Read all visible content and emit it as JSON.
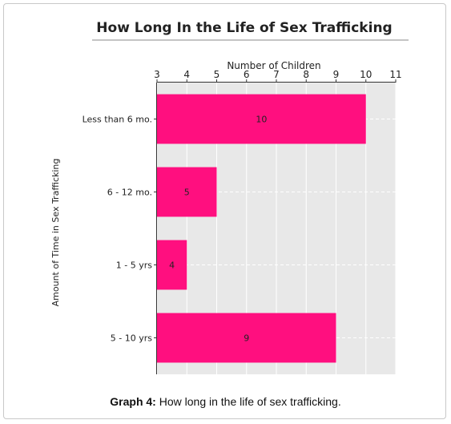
{
  "chart_data": {
    "type": "bar",
    "orientation": "horizontal",
    "title": "How Long In the Life of Sex Trafficking",
    "xlabel": "Number of Children",
    "ylabel": "Amount of Time in Sex Trafficking",
    "categories": [
      "Less than 6 mo.",
      "6 - 12 mo.",
      "1 - 5 yrs",
      "5 - 10 yrs"
    ],
    "values": [
      10,
      5,
      4,
      9
    ],
    "data_labels": [
      "10",
      "5",
      "4",
      "9"
    ],
    "xlim": [
      3,
      11
    ],
    "x_ticks": [
      "3",
      "4",
      "5",
      "6",
      "7",
      "8",
      "9",
      "10",
      "11"
    ],
    "x_axis_position": "top",
    "grid": true,
    "bar_color": "#ff0f7f",
    "plot_background": "#e8e8e8"
  },
  "caption": {
    "label": "Graph 4:",
    "text": " How long in the life of sex trafficking."
  }
}
